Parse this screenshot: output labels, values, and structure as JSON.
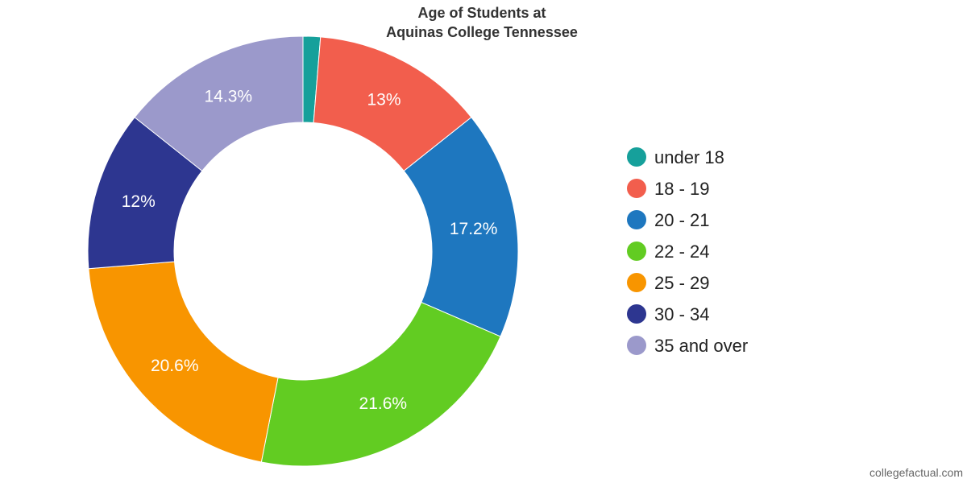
{
  "chart_data": {
    "type": "pie",
    "title": [
      "Age of Students at",
      "Aquinas College Tennessee"
    ],
    "categories": [
      "under 18",
      "18 - 19",
      "20 - 21",
      "22 - 24",
      "25 - 29",
      "30 - 34",
      "35 and over"
    ],
    "values": [
      1.3,
      13,
      17.2,
      21.6,
      20.6,
      12,
      14.3
    ],
    "value_labels": [
      "",
      "13%",
      "17.2%",
      "21.6%",
      "20.6%",
      "12%",
      "14.3%"
    ],
    "colors": [
      "#16a09b",
      "#f25e4d",
      "#1e77bf",
      "#62cc22",
      "#f89500",
      "#2d3690",
      "#9b99cb"
    ],
    "legend_position": "right",
    "donut": true
  },
  "credit": "collegefactual.com"
}
